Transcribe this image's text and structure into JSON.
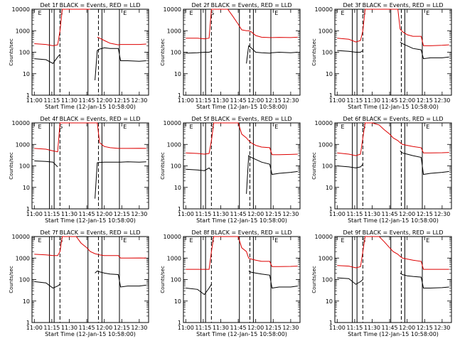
{
  "colors": {
    "events": "#000000",
    "lld": "#dd0000",
    "axes": "#000000",
    "background": "#ffffff"
  },
  "common": {
    "xlabel": "Start Time (12-Jan-15 10:58:00)",
    "ylabel": "Counts/sec",
    "x_ticks": [
      "11:00",
      "11:15",
      "11:30",
      "11:45",
      "12:00",
      "12:15",
      "12:30"
    ],
    "y_ticks": [
      "1",
      "10",
      "100",
      "1000",
      "10000"
    ],
    "flag_labels": [
      "E",
      "S",
      "E"
    ]
  },
  "chart_data": [
    {
      "type": "line",
      "title": "Det 1f BLACK = Events, RED = LLD",
      "xlabel": "Start Time (12-Jan-15 10:58:00)",
      "ylabel": "Counts/sec",
      "xlim": [
        "10:58",
        "12:38"
      ],
      "ylim": [
        1,
        10000
      ],
      "yscale": "log",
      "x": [
        "11:00",
        "11:10",
        "11:16",
        "11:20",
        "11:22",
        "11:24",
        "11:26",
        "11:28",
        "11:30",
        "11:36",
        "11:40",
        "11:45",
        "11:48",
        "11:52",
        "11:54",
        "11:56",
        "12:00",
        "12:05",
        "12:12",
        "12:14",
        "12:20",
        "12:30",
        "12:36"
      ],
      "series": [
        {
          "name": "Events",
          "values": [
            50,
            45,
            30,
            60,
            80,
            null,
            null,
            null,
            null,
            null,
            null,
            null,
            null,
            5,
            120,
            140,
            160,
            150,
            150,
            40,
            40,
            38,
            40
          ]
        },
        {
          "name": "LLD",
          "values": [
            250,
            230,
            200,
            220,
            1000,
            10000,
            10000,
            10000,
            10000,
            10000,
            10000,
            10000,
            10000,
            null,
            500,
            450,
            350,
            260,
            220,
            230,
            230,
            230,
            240
          ]
        }
      ]
    },
    {
      "type": "line",
      "title": "Det 2f BLACK = Events, RED = LLD",
      "xlabel": "Start Time (12-Jan-15 10:58:00)",
      "ylabel": "Counts/sec",
      "xlim": [
        "10:58",
        "12:38"
      ],
      "ylim": [
        1,
        10000
      ],
      "yscale": "log",
      "x": [
        "11:00",
        "11:10",
        "11:16",
        "11:20",
        "11:22",
        "11:24",
        "11:26",
        "11:28",
        "11:30",
        "11:36",
        "11:40",
        "11:45",
        "11:48",
        "11:52",
        "11:54",
        "11:56",
        "12:00",
        "12:05",
        "12:12",
        "12:14",
        "12:20",
        "12:30",
        "12:36"
      ],
      "series": [
        {
          "name": "Events",
          "values": [
            90,
            95,
            100,
            100,
            110,
            null,
            null,
            null,
            null,
            null,
            null,
            null,
            null,
            30,
            200,
            160,
            100,
            95,
            90,
            95,
            100,
            95,
            100
          ]
        },
        {
          "name": "LLD",
          "values": [
            450,
            450,
            420,
            450,
            10000,
            10000,
            10000,
            10000,
            10000,
            10000,
            5000,
            2000,
            1100,
            1000,
            1000,
            900,
            600,
            500,
            480,
            480,
            490,
            480,
            500
          ]
        }
      ]
    },
    {
      "type": "line",
      "title": "Det 3f BLACK = Events, RED = LLD",
      "xlabel": "Start Time (12-Jan-15 10:58:00)",
      "ylabel": "Counts/sec",
      "xlim": [
        "10:58",
        "12:38"
      ],
      "ylim": [
        1,
        10000
      ],
      "yscale": "log",
      "x": [
        "11:00",
        "11:10",
        "11:16",
        "11:20",
        "11:22",
        "11:24",
        "11:26",
        "11:28",
        "11:30",
        "11:36",
        "11:40",
        "11:45",
        "11:48",
        "11:52",
        "11:54",
        "11:56",
        "12:00",
        "12:05",
        "12:12",
        "12:14",
        "12:20",
        "12:30",
        "12:36"
      ],
      "series": [
        {
          "name": "Events",
          "values": [
            120,
            110,
            100,
            100,
            120,
            null,
            null,
            null,
            null,
            null,
            null,
            null,
            null,
            null,
            300,
            250,
            200,
            150,
            130,
            50,
            55,
            55,
            60
          ]
        },
        {
          "name": "LLD",
          "values": [
            450,
            400,
            300,
            350,
            1000,
            10000,
            10000,
            10000,
            10000,
            10000,
            10000,
            10000,
            10000,
            10000,
            1200,
            900,
            650,
            550,
            550,
            200,
            200,
            210,
            220
          ]
        }
      ]
    },
    {
      "type": "line",
      "title": "Det 4f BLACK = Events, RED = LLD",
      "xlabel": "Start Time (12-Jan-15 10:58:00)",
      "ylabel": "Counts/sec",
      "xlim": [
        "10:58",
        "12:38"
      ],
      "ylim": [
        1,
        10000
      ],
      "yscale": "log",
      "x": [
        "11:00",
        "11:10",
        "11:16",
        "11:20",
        "11:22",
        "11:24",
        "11:26",
        "11:28",
        "11:30",
        "11:36",
        "11:40",
        "11:45",
        "11:48",
        "11:52",
        "11:54",
        "11:56",
        "12:00",
        "12:05",
        "12:12",
        "12:14",
        "12:20",
        "12:30",
        "12:36"
      ],
      "series": [
        {
          "name": "Events",
          "values": [
            170,
            160,
            150,
            90,
            null,
            null,
            null,
            null,
            null,
            null,
            null,
            null,
            null,
            3,
            140,
            145,
            150,
            150,
            150,
            150,
            155,
            150,
            155
          ]
        },
        {
          "name": "LLD",
          "values": [
            650,
            600,
            500,
            450,
            10000,
            10000,
            10000,
            10000,
            10000,
            10000,
            10000,
            10000,
            10000,
            10000,
            10000,
            1200,
            800,
            700,
            650,
            650,
            650,
            660,
            650
          ]
        }
      ]
    },
    {
      "type": "line",
      "title": "Det 5f BLACK = Events, RED = LLD",
      "xlabel": "Start Time (12-Jan-15 10:58:00)",
      "ylabel": "Counts/sec",
      "xlim": [
        "10:58",
        "12:38"
      ],
      "ylim": [
        1,
        10000
      ],
      "yscale": "log",
      "x": [
        "11:00",
        "11:10",
        "11:16",
        "11:20",
        "11:22",
        "11:24",
        "11:26",
        "11:28",
        "11:30",
        "11:36",
        "11:40",
        "11:45",
        "11:48",
        "11:52",
        "11:54",
        "11:56",
        "12:00",
        "12:05",
        "12:12",
        "12:14",
        "12:20",
        "12:30",
        "12:36"
      ],
      "series": [
        {
          "name": "Events",
          "values": [
            70,
            65,
            60,
            80,
            60,
            null,
            null,
            null,
            null,
            null,
            null,
            null,
            null,
            5,
            300,
            250,
            200,
            150,
            120,
            40,
            45,
            50,
            55
          ]
        },
        {
          "name": "LLD",
          "values": [
            400,
            380,
            350,
            380,
            1500,
            10000,
            10000,
            10000,
            10000,
            10000,
            10000,
            10000,
            3000,
            2000,
            1500,
            1200,
            900,
            750,
            700,
            330,
            330,
            340,
            350
          ]
        }
      ]
    },
    {
      "type": "line",
      "title": "Det 6f BLACK = Events, RED = LLD",
      "xlabel": "Start Time (12-Jan-15 10:58:00)",
      "ylabel": "Counts/sec",
      "xlim": [
        "10:58",
        "12:38"
      ],
      "ylim": [
        1,
        10000
      ],
      "yscale": "log",
      "x": [
        "11:00",
        "11:10",
        "11:16",
        "11:20",
        "11:22",
        "11:24",
        "11:26",
        "11:28",
        "11:30",
        "11:36",
        "11:40",
        "11:45",
        "11:48",
        "11:52",
        "11:54",
        "11:56",
        "12:00",
        "12:05",
        "12:12",
        "12:14",
        "12:20",
        "12:30",
        "12:36"
      ],
      "series": [
        {
          "name": "Events",
          "values": [
            100,
            90,
            80,
            90,
            120,
            null,
            null,
            null,
            null,
            null,
            null,
            null,
            null,
            null,
            500,
            400,
            350,
            300,
            250,
            40,
            45,
            50,
            55
          ]
        },
        {
          "name": "LLD",
          "values": [
            400,
            350,
            300,
            350,
            2000,
            10000,
            10000,
            10000,
            10000,
            8000,
            5000,
            3000,
            2000,
            1500,
            1200,
            1000,
            900,
            800,
            700,
            400,
            400,
            410,
            420
          ]
        }
      ]
    },
    {
      "type": "line",
      "title": "Det 7f BLACK = Events, RED = LLD",
      "xlabel": "Start Time (12-Jan-15 10:58:00)",
      "ylabel": "Counts/sec",
      "xlim": [
        "10:58",
        "12:38"
      ],
      "ylim": [
        1,
        10000
      ],
      "yscale": "log",
      "x": [
        "11:00",
        "11:10",
        "11:16",
        "11:20",
        "11:22",
        "11:24",
        "11:26",
        "11:28",
        "11:30",
        "11:36",
        "11:40",
        "11:45",
        "11:48",
        "11:52",
        "11:54",
        "11:56",
        "12:00",
        "12:05",
        "12:12",
        "12:14",
        "12:20",
        "12:30",
        "12:36"
      ],
      "series": [
        {
          "name": "Events",
          "values": [
            80,
            70,
            40,
            50,
            60,
            null,
            null,
            null,
            null,
            null,
            null,
            null,
            null,
            200,
            250,
            230,
            200,
            180,
            170,
            45,
            50,
            50,
            55
          ]
        },
        {
          "name": "LLD",
          "values": [
            1500,
            1400,
            1300,
            1300,
            2000,
            10000,
            10000,
            10000,
            10000,
            10000,
            5000,
            3000,
            2000,
            1600,
            1500,
            1400,
            1300,
            1300,
            1300,
            1000,
            1000,
            1010,
            1000
          ]
        }
      ]
    },
    {
      "type": "line",
      "title": "Det 8f BLACK = Events, RED = LLD",
      "xlabel": "Start Time (12-Jan-15 10:58:00)",
      "ylabel": "Counts/sec",
      "xlim": [
        "10:58",
        "12:38"
      ],
      "ylim": [
        1,
        10000
      ],
      "yscale": "log",
      "x": [
        "11:00",
        "11:10",
        "11:16",
        "11:20",
        "11:22",
        "11:24",
        "11:26",
        "11:28",
        "11:30",
        "11:36",
        "11:40",
        "11:45",
        "11:48",
        "11:52",
        "11:54",
        "11:56",
        "12:00",
        "12:05",
        "12:12",
        "12:14",
        "12:20",
        "12:30",
        "12:36"
      ],
      "series": [
        {
          "name": "Events",
          "values": [
            40,
            35,
            20,
            40,
            60,
            null,
            null,
            null,
            null,
            null,
            null,
            null,
            null,
            null,
            250,
            220,
            200,
            180,
            160,
            40,
            45,
            45,
            50
          ]
        },
        {
          "name": "LLD",
          "values": [
            300,
            300,
            300,
            300,
            2000,
            10000,
            10000,
            10000,
            10000,
            10000,
            10000,
            10000,
            3000,
            2000,
            1000,
            900,
            800,
            700,
            700,
            400,
            400,
            410,
            420
          ]
        }
      ]
    },
    {
      "type": "line",
      "title": "Det 9f BLACK = Events, RED = LLD",
      "xlabel": "Start Time (12-Jan-15 10:58:00)",
      "ylabel": "Counts/sec",
      "xlim": [
        "10:58",
        "12:38"
      ],
      "ylim": [
        1,
        10000
      ],
      "yscale": "log",
      "x": [
        "11:00",
        "11:10",
        "11:16",
        "11:20",
        "11:22",
        "11:24",
        "11:26",
        "11:28",
        "11:30",
        "11:36",
        "11:40",
        "11:45",
        "11:48",
        "11:52",
        "11:54",
        "11:56",
        "12:00",
        "12:05",
        "12:12",
        "12:14",
        "12:20",
        "12:30",
        "12:36"
      ],
      "series": [
        {
          "name": "Events",
          "values": [
            120,
            110,
            60,
            80,
            100,
            null,
            null,
            null,
            null,
            null,
            null,
            null,
            null,
            null,
            200,
            170,
            150,
            140,
            130,
            40,
            40,
            42,
            45
          ]
        },
        {
          "name": "LLD",
          "values": [
            450,
            420,
            350,
            400,
            2000,
            10000,
            10000,
            10000,
            10000,
            10000,
            6000,
            3000,
            2000,
            1500,
            1200,
            1000,
            900,
            800,
            700,
            300,
            300,
            300,
            300
          ]
        }
      ]
    }
  ]
}
